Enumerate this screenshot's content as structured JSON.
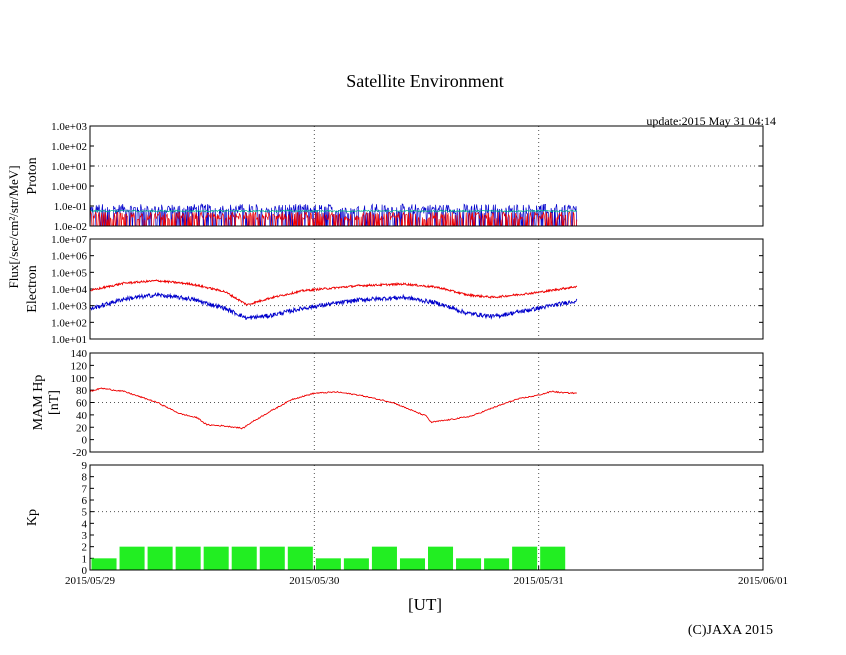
{
  "title": "Satellite Environment",
  "update": "update:2015 May 31 04:14",
  "copyright": "(C)JAXA 2015",
  "shared_ylabel": "Flux[/sec/cm²/str/MeV]",
  "colors": {
    "red": "#ee0000",
    "blue": "#0000cc",
    "green": "#00bb88",
    "kp_bar": "#22ee22",
    "grid": "#555555"
  },
  "chart_data": [
    {
      "type": "line",
      "name": "proton",
      "ylabel": "Proton",
      "yscale": "log",
      "ylim": [
        0.01,
        1000.0
      ],
      "yticks": [
        "1.0e-02",
        "1.0e-01",
        "1.0e+00",
        "1.0e+01",
        "1.0e+02",
        "1.0e+03"
      ],
      "gridlines_y": [
        10.0
      ],
      "series": [
        {
          "name": "proton-blue",
          "color": "blue",
          "base_log": -1.15,
          "noise": 0.5,
          "spiky": true
        },
        {
          "name": "proton-green",
          "color": "green",
          "base_log": -1.25,
          "noise": 0.08,
          "spiky": false
        },
        {
          "name": "proton-red",
          "color": "red",
          "base_log": -1.5,
          "noise": 0.4,
          "spiky": true
        }
      ]
    },
    {
      "type": "line",
      "name": "electron",
      "ylabel": "Electron",
      "yscale": "log",
      "ylim": [
        10.0,
        10000000.0
      ],
      "yticks": [
        "1.0e+01",
        "1.0e+02",
        "1.0e+03",
        "1.0e+04",
        "1.0e+05",
        "1.0e+06",
        "1.0e+07"
      ],
      "gridlines_y": [
        1000.0
      ],
      "series": [
        {
          "name": "electron-red",
          "color": "red",
          "points": [
            [
              0,
              3.9
            ],
            [
              0.15,
              4.35
            ],
            [
              0.3,
              4.5
            ],
            [
              0.45,
              4.3
            ],
            [
              0.6,
              3.85
            ],
            [
              0.7,
              3.05
            ],
            [
              0.8,
              3.45
            ],
            [
              0.95,
              3.9
            ],
            [
              1.2,
              4.2
            ],
            [
              1.4,
              4.3
            ],
            [
              1.55,
              4.1
            ],
            [
              1.68,
              3.65
            ],
            [
              1.8,
              3.5
            ],
            [
              2.0,
              3.8
            ],
            [
              2.17,
              4.15
            ]
          ]
        },
        {
          "name": "electron-blue",
          "color": "blue",
          "points": [
            [
              0,
              2.8
            ],
            [
              0.15,
              3.4
            ],
            [
              0.3,
              3.65
            ],
            [
              0.45,
              3.4
            ],
            [
              0.6,
              2.85
            ],
            [
              0.7,
              2.25
            ],
            [
              0.8,
              2.4
            ],
            [
              0.95,
              2.85
            ],
            [
              1.2,
              3.35
            ],
            [
              1.4,
              3.5
            ],
            [
              1.55,
              3.15
            ],
            [
              1.68,
              2.55
            ],
            [
              1.8,
              2.35
            ],
            [
              2.0,
              2.85
            ],
            [
              2.17,
              3.3
            ]
          ]
        }
      ]
    },
    {
      "type": "line",
      "name": "mam-hp",
      "ylabel": "MAM Hp [nT]",
      "ylabel_lines": [
        "MAM Hp",
        "[nT]"
      ],
      "yscale": "linear",
      "ylim": [
        -20,
        140
      ],
      "yticks": [
        "-20",
        "0",
        "20",
        "40",
        "60",
        "80",
        "100",
        "120",
        "140"
      ],
      "gridlines_y": [
        60
      ],
      "series": [
        {
          "name": "mam-hp-red",
          "color": "red",
          "points": [
            [
              0,
              78
            ],
            [
              0.05,
              83
            ],
            [
              0.15,
              78
            ],
            [
              0.3,
              60
            ],
            [
              0.4,
              42
            ],
            [
              0.48,
              35
            ],
            [
              0.52,
              24
            ],
            [
              0.6,
              22
            ],
            [
              0.65,
              20
            ],
            [
              0.68,
              18
            ],
            [
              0.72,
              28
            ],
            [
              0.8,
              45
            ],
            [
              0.9,
              65
            ],
            [
              1.0,
              75
            ],
            [
              1.1,
              77
            ],
            [
              1.2,
              72
            ],
            [
              1.35,
              60
            ],
            [
              1.45,
              45
            ],
            [
              1.5,
              38
            ],
            [
              1.52,
              28
            ],
            [
              1.6,
              32
            ],
            [
              1.7,
              38
            ],
            [
              1.8,
              52
            ],
            [
              1.9,
              65
            ],
            [
              2.0,
              72
            ],
            [
              2.06,
              78
            ],
            [
              2.1,
              76
            ],
            [
              2.17,
              75
            ]
          ]
        }
      ]
    },
    {
      "type": "bar",
      "name": "kp",
      "ylabel": "Kp",
      "ylim": [
        0,
        9
      ],
      "yticks": [
        "0",
        "1",
        "2",
        "3",
        "4",
        "5",
        "6",
        "7",
        "8",
        "9"
      ],
      "gridlines_y": [
        5
      ],
      "bar_width_days": 0.125,
      "values": [
        1,
        2,
        2,
        2,
        2,
        2,
        2,
        2,
        1,
        1,
        2,
        1,
        2,
        1,
        1,
        2,
        2
      ]
    }
  ],
  "x_axis": {
    "xlabel": "[UT]",
    "xlim_days": [
      0,
      3
    ],
    "data_end_days": 2.17,
    "tick_labels": [
      "2015/05/29",
      "2015/05/30",
      "2015/05/31",
      "2015/06/01"
    ],
    "vertical_gridlines_days": [
      1,
      2
    ]
  }
}
